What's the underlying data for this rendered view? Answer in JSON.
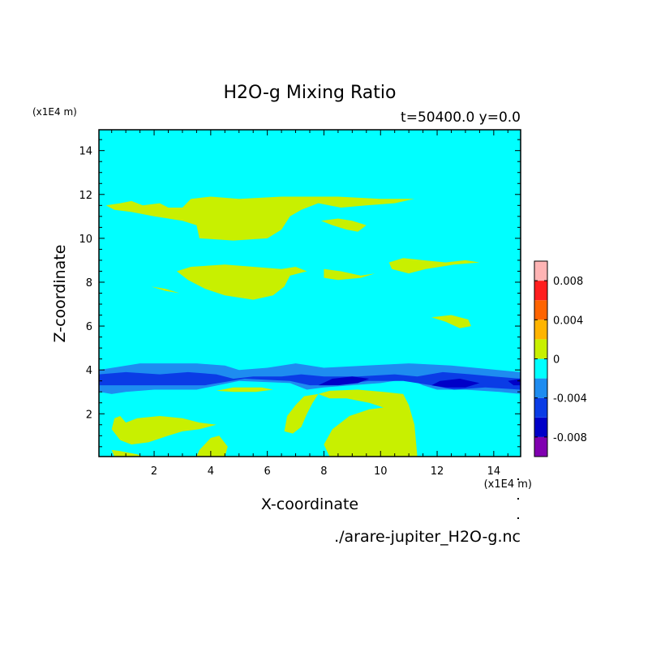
{
  "chart_data": {
    "type": "heatmap",
    "title": "H2O-g Mixing Ratio",
    "subtitle": "t=50400.0 y=0.0",
    "xlabel": "X-coordinate",
    "ylabel": "Z-coordinate",
    "x_unit": "(x1E4 m)",
    "y_unit": "(x1E4 m)",
    "source_file": "./arare-jupiter_H2O-g.nc",
    "xlim": [
      0.05,
      14.95
    ],
    "ylim": [
      0.05,
      14.95
    ],
    "x_ticks": [
      2,
      4,
      6,
      8,
      10,
      12,
      14
    ],
    "y_ticks": [
      2,
      4,
      6,
      8,
      10,
      12,
      14
    ],
    "x_tick_labels": [
      "2",
      "4",
      "6",
      "8",
      "10",
      "12",
      "14"
    ],
    "y_tick_labels": [
      "2",
      "4",
      "6",
      "8",
      "10",
      "12",
      "14"
    ],
    "background_level": "-0.002 to 0",
    "colorbar": {
      "levels": [
        -0.01,
        -0.008,
        -0.006,
        -0.004,
        -0.002,
        0,
        0.002,
        0.004,
        0.006,
        0.008,
        0.01
      ],
      "colors": [
        "#8000b0",
        "#0000c8",
        "#0a3ce6",
        "#1e8cf0",
        "#00ffff",
        "#c8f000",
        "#ffb400",
        "#ff6400",
        "#ff1e1e",
        "#ffb4b4"
      ],
      "tick_values": [
        -0.008,
        -0.004,
        0,
        0.004,
        0.008
      ],
      "tick_labels": [
        "-0.008",
        "-0.004",
        "0",
        "0.004",
        "0.008"
      ]
    },
    "regions": [
      {
        "level": "-0.004 to -0.002",
        "color": "#1e8cf0",
        "points": [
          [
            0.05,
            3.0
          ],
          [
            0.05,
            4.0
          ],
          [
            1.5,
            4.3
          ],
          [
            3.5,
            4.3
          ],
          [
            4.5,
            4.2
          ],
          [
            5.0,
            4.0
          ],
          [
            6.0,
            4.1
          ],
          [
            7.0,
            4.3
          ],
          [
            8.0,
            4.1
          ],
          [
            9.5,
            4.2
          ],
          [
            11.0,
            4.3
          ],
          [
            12.5,
            4.2
          ],
          [
            14.95,
            3.9
          ],
          [
            14.95,
            2.9
          ],
          [
            14.2,
            3.0
          ],
          [
            13.0,
            3.1
          ],
          [
            12.0,
            3.1
          ],
          [
            11.5,
            3.3
          ],
          [
            11.0,
            3.6
          ],
          [
            10.0,
            3.4
          ],
          [
            8.0,
            3.2
          ],
          [
            7.4,
            3.1
          ],
          [
            6.8,
            3.4
          ],
          [
            5.0,
            3.5
          ],
          [
            3.5,
            3.1
          ],
          [
            2.0,
            3.1
          ],
          [
            1.0,
            3.0
          ],
          [
            0.5,
            2.9
          ]
        ]
      },
      {
        "level": "-0.006 to -0.004",
        "color": "#0a3ce6",
        "points": [
          [
            0.05,
            3.3
          ],
          [
            0.05,
            3.8
          ],
          [
            1.0,
            3.9
          ],
          [
            2.2,
            3.8
          ],
          [
            3.2,
            3.9
          ],
          [
            4.2,
            3.8
          ],
          [
            4.8,
            3.6
          ],
          [
            5.5,
            3.7
          ],
          [
            6.5,
            3.7
          ],
          [
            7.2,
            3.8
          ],
          [
            8.0,
            3.7
          ],
          [
            9.2,
            3.7
          ],
          [
            10.5,
            3.8
          ],
          [
            11.3,
            3.7
          ],
          [
            12.2,
            3.9
          ],
          [
            13.2,
            3.8
          ],
          [
            14.0,
            3.7
          ],
          [
            14.95,
            3.6
          ],
          [
            14.95,
            3.1
          ],
          [
            13.7,
            3.2
          ],
          [
            12.6,
            3.1
          ],
          [
            11.8,
            3.3
          ],
          [
            10.8,
            3.5
          ],
          [
            9.6,
            3.5
          ],
          [
            8.2,
            3.3
          ],
          [
            7.5,
            3.3
          ],
          [
            6.8,
            3.5
          ],
          [
            5.2,
            3.6
          ],
          [
            3.8,
            3.3
          ],
          [
            2.3,
            3.3
          ],
          [
            1.0,
            3.3
          ]
        ]
      },
      {
        "level": "-0.008 to -0.006",
        "color": "#0000c8",
        "points": [
          [
            7.8,
            3.3
          ],
          [
            8.3,
            3.6
          ],
          [
            9.0,
            3.7
          ],
          [
            9.6,
            3.6
          ],
          [
            9.2,
            3.4
          ],
          [
            8.5,
            3.3
          ]
        ]
      },
      {
        "level": "-0.008 to -0.006",
        "color": "#0000c8",
        "points": [
          [
            11.8,
            3.3
          ],
          [
            12.1,
            3.5
          ],
          [
            12.8,
            3.6
          ],
          [
            13.5,
            3.4
          ],
          [
            13.0,
            3.2
          ],
          [
            12.3,
            3.2
          ]
        ]
      },
      {
        "level": "-0.008 to -0.006",
        "color": "#0000c8",
        "points": [
          [
            14.5,
            3.5
          ],
          [
            14.95,
            3.6
          ],
          [
            14.95,
            3.3
          ],
          [
            14.7,
            3.3
          ]
        ]
      },
      {
        "level": "0 to 0.002",
        "color": "#c8f000",
        "points": [
          [
            0.3,
            11.5
          ],
          [
            0.6,
            11.3
          ],
          [
            1.2,
            11.2
          ],
          [
            2.0,
            11.0
          ],
          [
            3.0,
            10.8
          ],
          [
            3.5,
            10.6
          ],
          [
            3.6,
            10.0
          ],
          [
            4.8,
            9.9
          ],
          [
            6.0,
            10.0
          ],
          [
            6.5,
            10.4
          ],
          [
            6.8,
            11.0
          ],
          [
            7.2,
            11.3
          ],
          [
            7.8,
            11.6
          ],
          [
            8.6,
            11.4
          ],
          [
            9.5,
            11.5
          ],
          [
            10.5,
            11.6
          ],
          [
            11.2,
            11.8
          ],
          [
            10.0,
            11.8
          ],
          [
            8.5,
            11.9
          ],
          [
            6.5,
            11.9
          ],
          [
            5.0,
            11.8
          ],
          [
            4.0,
            11.9
          ],
          [
            3.3,
            11.8
          ],
          [
            3.0,
            11.4
          ],
          [
            2.5,
            11.4
          ],
          [
            2.2,
            11.6
          ],
          [
            1.6,
            11.5
          ],
          [
            1.2,
            11.7
          ],
          [
            0.8,
            11.6
          ]
        ]
      },
      {
        "level": "0 to 0.002",
        "color": "#c8f000",
        "points": [
          [
            7.9,
            10.8
          ],
          [
            8.5,
            10.9
          ],
          [
            9.0,
            10.8
          ],
          [
            9.5,
            10.6
          ],
          [
            9.2,
            10.3
          ],
          [
            8.8,
            10.4
          ],
          [
            8.3,
            10.6
          ]
        ]
      },
      {
        "level": "0 to 0.002",
        "color": "#c8f000",
        "points": [
          [
            2.8,
            8.5
          ],
          [
            3.3,
            8.7
          ],
          [
            4.5,
            8.8
          ],
          [
            5.5,
            8.7
          ],
          [
            6.5,
            8.6
          ],
          [
            7.0,
            8.7
          ],
          [
            7.4,
            8.5
          ],
          [
            6.8,
            8.3
          ],
          [
            6.6,
            7.8
          ],
          [
            6.2,
            7.4
          ],
          [
            5.5,
            7.2
          ],
          [
            4.5,
            7.4
          ],
          [
            3.8,
            7.7
          ],
          [
            3.2,
            8.1
          ]
        ]
      },
      {
        "level": "0 to 0.002",
        "color": "#c8f000",
        "points": [
          [
            1.9,
            7.8
          ],
          [
            2.4,
            7.6
          ],
          [
            2.9,
            7.5
          ],
          [
            2.4,
            7.7
          ]
        ]
      },
      {
        "level": "0 to 0.002",
        "color": "#c8f000",
        "points": [
          [
            8.0,
            8.6
          ],
          [
            8.6,
            8.5
          ],
          [
            9.3,
            8.3
          ],
          [
            9.8,
            8.4
          ],
          [
            9.3,
            8.2
          ],
          [
            8.5,
            8.1
          ],
          [
            8.0,
            8.2
          ]
        ]
      },
      {
        "level": "0 to 0.002",
        "color": "#c8f000",
        "points": [
          [
            10.3,
            8.9
          ],
          [
            10.8,
            9.1
          ],
          [
            11.5,
            9.0
          ],
          [
            12.3,
            8.9
          ],
          [
            13.0,
            9.0
          ],
          [
            13.5,
            8.9
          ],
          [
            12.6,
            8.8
          ],
          [
            11.6,
            8.6
          ],
          [
            11.0,
            8.4
          ],
          [
            10.4,
            8.6
          ]
        ]
      },
      {
        "level": "0 to 0.002",
        "color": "#c8f000",
        "points": [
          [
            11.8,
            6.4
          ],
          [
            12.5,
            6.5
          ],
          [
            13.1,
            6.3
          ],
          [
            13.2,
            6.0
          ],
          [
            12.8,
            5.9
          ],
          [
            12.3,
            6.2
          ]
        ]
      },
      {
        "level": "0 to 0.002",
        "color": "#c8f000",
        "points": [
          [
            4.2,
            3.05
          ],
          [
            4.8,
            3.2
          ],
          [
            5.8,
            3.2
          ],
          [
            6.2,
            3.1
          ],
          [
            5.6,
            3.0
          ],
          [
            4.8,
            3.0
          ]
        ]
      },
      {
        "level": "0 to 0.002",
        "color": "#c8f000",
        "points": [
          [
            7.8,
            2.9
          ],
          [
            8.2,
            3.05
          ],
          [
            9.2,
            3.1
          ],
          [
            10.1,
            3.0
          ],
          [
            10.8,
            2.9
          ],
          [
            11.0,
            2.4
          ],
          [
            11.2,
            1.5
          ],
          [
            11.3,
            0.05
          ],
          [
            8.2,
            0.05
          ],
          [
            8.0,
            0.6
          ],
          [
            8.3,
            1.3
          ],
          [
            8.9,
            1.9
          ],
          [
            9.6,
            2.2
          ],
          [
            10.2,
            2.3
          ],
          [
            10.4,
            2.5
          ],
          [
            10.7,
            2.0
          ],
          [
            10.3,
            2.2
          ],
          [
            9.6,
            2.5
          ],
          [
            8.8,
            2.7
          ],
          [
            8.2,
            2.7
          ]
        ]
      },
      {
        "level": "0 to 0.002",
        "color": "#c8f000",
        "points": [
          [
            6.6,
            1.2
          ],
          [
            6.7,
            1.9
          ],
          [
            7.0,
            2.4
          ],
          [
            7.3,
            2.8
          ],
          [
            7.8,
            2.9
          ],
          [
            7.6,
            2.5
          ],
          [
            7.4,
            2.0
          ],
          [
            7.2,
            1.4
          ],
          [
            6.9,
            1.1
          ]
        ]
      },
      {
        "level": "0 to 0.002",
        "color": "#c8f000",
        "points": [
          [
            0.5,
            1.3
          ],
          [
            0.6,
            1.8
          ],
          [
            0.8,
            1.9
          ],
          [
            1.0,
            1.6
          ],
          [
            1.4,
            1.8
          ],
          [
            2.2,
            1.9
          ],
          [
            3.0,
            1.8
          ],
          [
            3.6,
            1.6
          ],
          [
            4.2,
            1.5
          ],
          [
            3.6,
            1.3
          ],
          [
            3.0,
            1.2
          ],
          [
            2.5,
            1.0
          ],
          [
            1.8,
            0.7
          ],
          [
            1.2,
            0.6
          ],
          [
            0.8,
            0.8
          ]
        ]
      },
      {
        "level": "0 to 0.002",
        "color": "#c8f000",
        "points": [
          [
            0.5,
            0.35
          ],
          [
            0.8,
            0.3
          ],
          [
            1.4,
            0.15
          ],
          [
            1.6,
            0.05
          ],
          [
            0.6,
            0.05
          ]
        ]
      },
      {
        "level": "0 to 0.002",
        "color": "#c8f000",
        "points": [
          [
            3.5,
            0.05
          ],
          [
            3.6,
            0.35
          ],
          [
            4.0,
            0.9
          ],
          [
            4.3,
            1.0
          ],
          [
            4.6,
            0.5
          ],
          [
            4.5,
            0.05
          ]
        ]
      }
    ]
  }
}
